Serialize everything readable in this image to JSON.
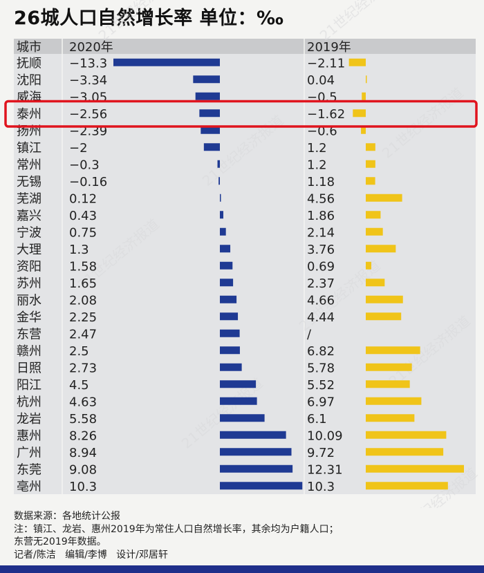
{
  "title": "26城人口自然增长率 单位：‰",
  "header": {
    "col_city": "城市",
    "col_2020": "2020年",
    "col_2019": "2019年"
  },
  "colors": {
    "bar_2020": "#1f3a93",
    "bar_2019": "#f0c419",
    "highlight": "#e0141e",
    "header_bg": "#c9cacc",
    "row_bg": "#e3e4e6"
  },
  "chart_data": {
    "type": "bar",
    "categories": [
      "抚顺",
      "沈阳",
      "威海",
      "泰州",
      "扬州",
      "镇江",
      "常州",
      "无锡",
      "芜湖",
      "嘉兴",
      "宁波",
      "大理",
      "资阳",
      "苏州",
      "丽水",
      "金华",
      "东营",
      "赣州",
      "日照",
      "阳江",
      "杭州",
      "龙岩",
      "惠州",
      "广州",
      "东莞",
      "亳州"
    ],
    "series": [
      {
        "name": "2020年",
        "values": [
          -13.3,
          -3.34,
          -3.05,
          -2.56,
          -2.39,
          -2,
          -0.3,
          -0.16,
          0.12,
          0.43,
          0.75,
          1.3,
          1.58,
          1.65,
          2.08,
          2.25,
          2.47,
          2.5,
          2.73,
          4.5,
          4.63,
          5.58,
          8.26,
          8.94,
          9.08,
          10.3
        ],
        "labels": [
          "−13.3",
          "−3.34",
          "−3.05",
          "−2.56",
          "−2.39",
          "−2",
          "−0.3",
          "−0.16",
          "0.12",
          "0.43",
          "0.75",
          "1.3",
          "1.58",
          "1.65",
          "2.08",
          "2.25",
          "2.47",
          "2.5",
          "2.73",
          "4.5",
          "4.63",
          "5.58",
          "8.26",
          "8.94",
          "9.08",
          "10.3"
        ]
      },
      {
        "name": "2019年",
        "values": [
          -2.11,
          0.04,
          -0.5,
          -1.62,
          -0.6,
          1.2,
          1.2,
          1.18,
          4.56,
          1.86,
          2.14,
          3.76,
          0.69,
          2.37,
          4.66,
          4.44,
          null,
          6.82,
          5.78,
          5.52,
          6.97,
          6.1,
          10.09,
          9.72,
          12.31,
          10.3
        ],
        "labels": [
          "−2.11",
          "0.04",
          "−0.5",
          "−1.62",
          "−0.6",
          "1.2",
          "1.2",
          "1.18",
          "4.56",
          "1.86",
          "2.14",
          "3.76",
          "0.69",
          "2.37",
          "4.66",
          "4.44",
          "/",
          "6.82",
          "5.78",
          "5.52",
          "6.97",
          "6.1",
          "10.09",
          "9.72",
          "12.31",
          "10.3"
        ]
      }
    ],
    "highlight_category": "泰州"
  },
  "watermark": "21世纪经济报道",
  "footer": {
    "source": "数据来源：各地统计公报",
    "note1": "注：镇江、龙岩、惠州2019年为常住人口自然增长率，其余均为户籍人口；",
    "note2": "东营无2019年数据。",
    "credits": "记者/陈洁   编辑/李博   设计/邓居轩"
  }
}
